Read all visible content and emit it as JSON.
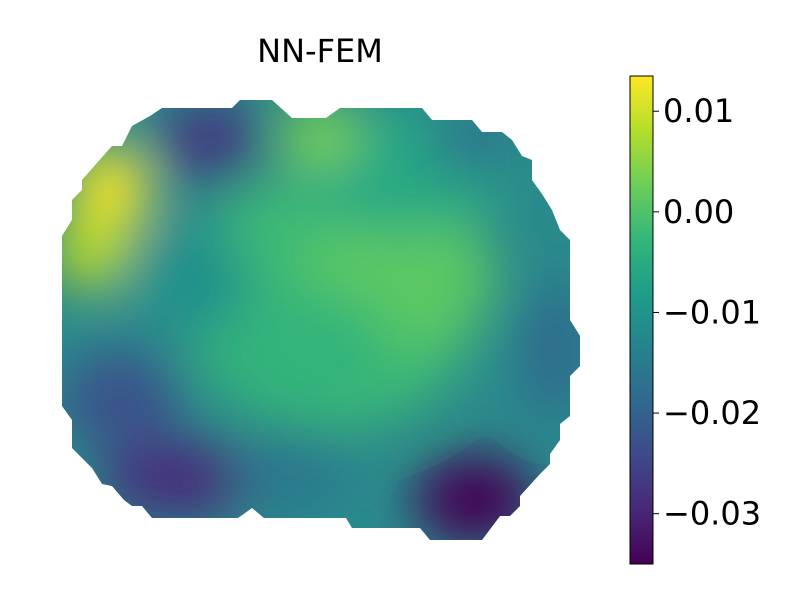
{
  "chart_data": {
    "type": "heatmap",
    "title": "NN-FEM",
    "xlabel": "",
    "ylabel": "",
    "axes_visible": false,
    "colormap": "viridis",
    "colorbar": {
      "range": [
        -0.035,
        0.0135
      ],
      "ticks": [
        0.01,
        0.0,
        -0.01,
        -0.02,
        -0.03
      ],
      "tick_labels": [
        "0.01",
        "0.00",
        "−0.01",
        "−0.02",
        "−0.03"
      ]
    },
    "field_features": [
      {
        "location": "upper-left edge",
        "value": 0.013
      },
      {
        "location": "lower-right corner",
        "value": -0.035
      },
      {
        "location": "lower-left",
        "value": -0.028
      },
      {
        "location": "top, left of center",
        "value": -0.028
      },
      {
        "location": "top, center",
        "value": 0.003
      },
      {
        "location": "top-right",
        "value": -0.015
      },
      {
        "location": "center-right",
        "value": 0.004
      },
      {
        "location": "center",
        "value": 0.0
      },
      {
        "location": "right edge",
        "value": -0.016
      }
    ]
  }
}
